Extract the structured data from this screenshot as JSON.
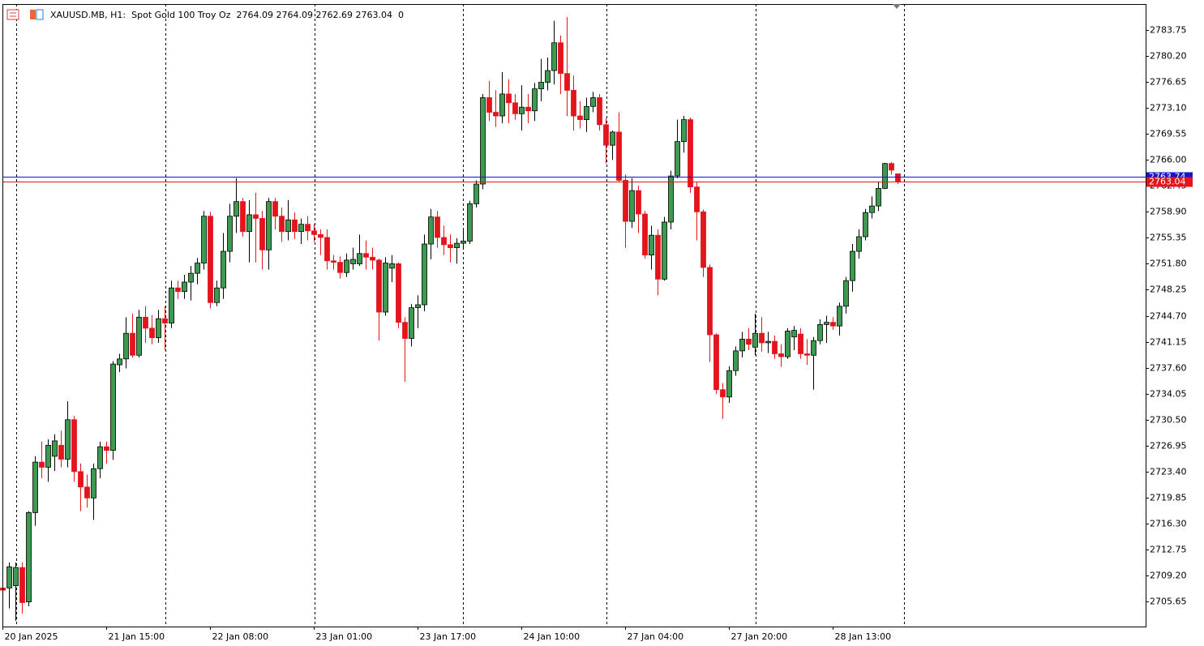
{
  "chart_data": {
    "type": "candlestick",
    "symbol": "XAUUSD.MB, H1:",
    "description": "Spot Gold 100 Troy Oz",
    "header_value": 0,
    "up_color": "#3c9a4e",
    "down_color": "#e3141c",
    "bid": 2763.04,
    "ask": 2763.74,
    "bid_color": "#e3141c",
    "ask_color": "#1414c8",
    "xlim": [
      0,
      176.25
    ],
    "ylim": [
      2702.23,
      2787.29
    ],
    "xticks": [
      {
        "value": 0,
        "label": "20 Jan 2025"
      },
      {
        "value": 16,
        "label": "21 Jan 15:00"
      },
      {
        "value": 32,
        "label": "22 Jan 08:00"
      },
      {
        "value": 48,
        "label": "23 Jan 01:00"
      },
      {
        "value": 64,
        "label": "23 Jan 17:00"
      },
      {
        "value": 80,
        "label": "24 Jan 10:00"
      },
      {
        "value": 96,
        "label": "27 Jan 04:00"
      },
      {
        "value": 112,
        "label": "27 Jan 20:00"
      },
      {
        "value": 128,
        "label": "28 Jan 13:00"
      }
    ],
    "yticks": [
      2705.65,
      {
        "value": 2709.2,
        "label": "2709.20"
      },
      2712.75,
      {
        "value": 2716.3,
        "label": "2716.30"
      },
      2719.85,
      {
        "value": 2723.4,
        "label": "2723.40"
      },
      2726.95,
      {
        "value": 2730.5,
        "label": "2730.50"
      },
      2734.05,
      {
        "value": 2737.6,
        "label": "2737.60"
      },
      2741.15,
      {
        "value": 2744.7,
        "label": "2744.70"
      },
      2748.25,
      {
        "value": 2751.8,
        "label": "2751.80"
      },
      2755.35,
      {
        "value": 2758.9,
        "label": "2758.90"
      },
      2762.45,
      {
        "value": 2766,
        "label": "2766.00"
      },
      2769.55,
      {
        "value": 2773.1,
        "label": "2773.10"
      },
      2776.65,
      {
        "value": 2780.2,
        "label": "2780.20"
      },
      2783.75
    ],
    "open": [
      2707.5,
      2707.5,
      2707.8,
      2710.3,
      2705.6,
      2717.8,
      2724.7,
      2724,
      2725.5,
      2727,
      2725.1,
      2730.5,
      2723.4,
      2721.3,
      2719.8,
      2723.8,
      2726.8,
      2726.3,
      2738,
      2738.8,
      2742.3,
      2739.3,
      2744.5,
      2743,
      2741.7,
      2744.3,
      2743.7,
      2748.5,
      2748,
      2749.3,
      2750.5,
      2751.9,
      2758.3,
      2746.5,
      2748.5,
      2753.5,
      2758.3,
      2760.3,
      2756.2,
      2758.5,
      2758,
      2753.7,
      2760.3,
      2758.3,
      2756.2,
      2757.8,
      2756.2,
      2757.2,
      2756.3,
      2755.8,
      2755.4,
      2752.2,
      2752,
      2750.6,
      2751.8,
      2751.8,
      2753.2,
      2752.7,
      2752.3,
      2745.2,
      2751.2,
      2751.8,
      2743.8,
      2741.6,
      2745.8,
      2746.2,
      2754.5,
      2758.2,
      2755.4,
      2754.4,
      2754,
      2754.6,
      2754.9,
      2760,
      2762.7,
      2774.5,
      2772.5,
      2772,
      2775,
      2773.8,
      2772.3,
      2773.2,
      2772.7,
      2775.7,
      2776.6,
      2778.2,
      2782,
      2777.8,
      2775.5,
      2772,
      2771.5,
      2773.3,
      2774.5,
      2770.8,
      2768,
      2769.8,
      2763.2,
      2757.6,
      2761.8,
      2758.6,
      2753,
      2755.7,
      2749.7,
      2757.5,
      2763.8,
      2768.5,
      2771.5,
      2762.3,
      2758.9,
      2751.3,
      2742.1,
      2734.6,
      2733.6,
      2737.2,
      2739.9,
      2741.5,
      2740.4,
      2742.3,
      2741,
      2741.2,
      2739.5,
      2739.1,
      2741.8,
      2742.2,
      2739.5,
      2739.3,
      2741.3,
      2743.5,
      2743.8,
      2743.3,
      2746,
      2749.5,
      2753.5,
      2755.5,
      2758.8,
      2759.7,
      2762.1,
      2765.5,
      2764.09
    ],
    "high": [
      2708,
      2711,
      2711,
      2711,
      2718,
      2725.5,
      2727.5,
      2727.8,
      2728.5,
      2729,
      2733,
      2731,
      2724.5,
      2723,
      2724.5,
      2727.5,
      2727.5,
      2738.5,
      2739.5,
      2744.5,
      2745,
      2745.5,
      2746,
      2744.8,
      2745.5,
      2746,
      2749.5,
      2749.5,
      2750.3,
      2751.5,
      2752.6,
      2759,
      2758.9,
      2749.5,
      2756,
      2760,
      2763.5,
      2760.8,
      2760.5,
      2761.5,
      2759,
      2760.8,
      2760.8,
      2759.5,
      2760.5,
      2758.8,
      2758,
      2758.3,
      2757.2,
      2756.5,
      2756.5,
      2753,
      2752.8,
      2753.2,
      2754,
      2755.8,
      2755,
      2754,
      2752.5,
      2752.7,
      2753,
      2752,
      2744.5,
      2746.3,
      2747.5,
      2755.8,
      2759.3,
      2759,
      2757,
      2755.8,
      2755.3,
      2756.7,
      2760.4,
      2763.2,
      2775,
      2776.8,
      2775.5,
      2778,
      2777,
      2775,
      2776.2,
      2775,
      2776.5,
      2779.8,
      2780,
      2785,
      2783,
      2785.5,
      2777.5,
      2774,
      2774.5,
      2775.3,
      2775,
      2771.7,
      2770,
      2772.5,
      2764,
      2763.5,
      2762.5,
      2759,
      2757,
      2756.5,
      2758.2,
      2764.5,
      2771.5,
      2772,
      2771.8,
      2763,
      2759.2,
      2751.7,
      2742.3,
      2735.5,
      2737.8,
      2740.5,
      2742.5,
      2743,
      2745,
      2744.5,
      2742.5,
      2742,
      2740.8,
      2743,
      2743.3,
      2743,
      2741.5,
      2741.8,
      2744.2,
      2744.7,
      2744.5,
      2746.5,
      2750,
      2754.5,
      2756.5,
      2759.3,
      2761,
      2763,
      2765.6,
      2765.7,
      2764.09
    ],
    "low": [
      2706,
      2704.7,
      2703,
      2704,
      2705,
      2716,
      2722.5,
      2722,
      2723.5,
      2724,
      2724,
      2722,
      2718,
      2718.5,
      2716.8,
      2722.5,
      2724.5,
      2725,
      2737,
      2737.5,
      2739,
      2739,
      2741,
      2740.8,
      2741,
      2740,
      2743,
      2747,
      2747,
      2746.8,
      2749,
      2751,
      2745.7,
      2746,
      2747,
      2752,
      2756,
      2755.5,
      2752,
      2752,
      2751,
      2751,
      2756.5,
      2754.8,
      2755,
      2755.2,
      2754.5,
      2755,
      2754.8,
      2753,
      2751,
      2751,
      2749.8,
      2750,
      2751,
      2751.5,
      2751,
      2751,
      2741.3,
      2744.7,
      2749.3,
      2743,
      2735.7,
      2740.5,
      2743,
      2745.3,
      2752.4,
      2754,
      2753,
      2752,
      2751.8,
      2753.8,
      2754.5,
      2759.5,
      2762,
      2771.3,
      2770.5,
      2771,
      2771,
      2771.5,
      2770,
      2771,
      2771.3,
      2774,
      2775.5,
      2776.3,
      2775,
      2772,
      2770,
      2770.3,
      2769.8,
      2772.5,
      2770,
      2765.5,
      2766,
      2763,
      2754,
      2756.7,
      2756,
      2752.5,
      2751,
      2747.5,
      2749.5,
      2756.5,
      2763.5,
      2767,
      2761.5,
      2755,
      2750,
      2738.4,
      2734,
      2730.6,
      2732.8,
      2736.5,
      2739,
      2740,
      2739.3,
      2739.8,
      2739.6,
      2738.8,
      2737.7,
      2738.8,
      2740,
      2738.8,
      2738,
      2734.6,
      2740.8,
      2741,
      2742.8,
      2742,
      2745,
      2748,
      2752.5,
      2755,
      2758,
      2759,
      2762,
      2764,
      2762.69
    ],
    "close": [
      2707.2,
      2710.4,
      2710.3,
      2705.5,
      2717.8,
      2724.7,
      2724,
      2727,
      2727.6,
      2725.1,
      2730.5,
      2723.4,
      2721.3,
      2719.8,
      2723.8,
      2726.8,
      2726.3,
      2738.1,
      2738.8,
      2742.3,
      2739.3,
      2744.5,
      2743,
      2741.7,
      2744.3,
      2743.7,
      2748.5,
      2748,
      2749.3,
      2750.5,
      2751.9,
      2758.3,
      2746.5,
      2748.5,
      2753.5,
      2758.3,
      2760.3,
      2756.2,
      2758.5,
      2758,
      2753.7,
      2760.3,
      2758.3,
      2756.2,
      2757.8,
      2756.2,
      2757.2,
      2756.3,
      2755.8,
      2755.4,
      2752.2,
      2752,
      2750.6,
      2752.3,
      2752.4,
      2753.2,
      2752.7,
      2752.3,
      2745.2,
      2751.9,
      2751.8,
      2743.8,
      2741.6,
      2745.8,
      2746.2,
      2754.5,
      2758.2,
      2755.4,
      2754.4,
      2754,
      2754.6,
      2754.9,
      2760,
      2762.7,
      2774.5,
      2772.5,
      2772,
      2775,
      2773.8,
      2772.3,
      2773.2,
      2772.7,
      2775.7,
      2776.6,
      2778.2,
      2782,
      2777.8,
      2775.5,
      2772,
      2771.5,
      2773.3,
      2774.5,
      2770.8,
      2768,
      2769.8,
      2763.2,
      2757.6,
      2761.8,
      2758.6,
      2753,
      2755.7,
      2749.7,
      2757.5,
      2763.8,
      2768.5,
      2771.5,
      2762.3,
      2758.9,
      2751.3,
      2742.1,
      2734.6,
      2733.6,
      2737.2,
      2739.9,
      2741.5,
      2740.8,
      2742.3,
      2741,
      2741.2,
      2739.5,
      2739.1,
      2742.6,
      2742.7,
      2739.5,
      2739.3,
      2741.3,
      2743.5,
      2743.8,
      2743.3,
      2746,
      2749.5,
      2753.5,
      2755.5,
      2758.8,
      2759.7,
      2762.1,
      2765.5,
      2764.6,
      2763.04
    ]
  }
}
